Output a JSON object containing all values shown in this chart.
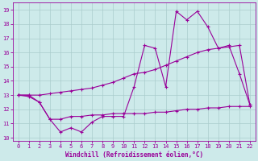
{
  "xlabel": "Windchill (Refroidissement éolien,°C)",
  "xlim": [
    -0.5,
    22.5
  ],
  "ylim": [
    9.8,
    19.5
  ],
  "xticks": [
    0,
    1,
    2,
    3,
    4,
    5,
    6,
    7,
    8,
    9,
    10,
    11,
    12,
    13,
    14,
    15,
    16,
    17,
    18,
    19,
    20,
    21,
    22
  ],
  "yticks": [
    10,
    11,
    12,
    13,
    14,
    15,
    16,
    17,
    18,
    19
  ],
  "background_color": "#cdeaea",
  "line_color": "#990099",
  "grid_color": "#aacccc",
  "line1_x": [
    0,
    1,
    2,
    3,
    4,
    5,
    6,
    7,
    8,
    9,
    10,
    11,
    12,
    13,
    14,
    15,
    16,
    17,
    18,
    19,
    20,
    21,
    22
  ],
  "line1_y": [
    13.0,
    12.9,
    12.5,
    11.3,
    10.4,
    10.7,
    10.4,
    11.1,
    11.5,
    11.5,
    11.5,
    13.6,
    16.5,
    16.3,
    13.6,
    18.9,
    18.3,
    18.9,
    17.8,
    16.3,
    16.5,
    14.5,
    12.3
  ],
  "line2_x": [
    0,
    1,
    2,
    3,
    4,
    5,
    6,
    7,
    8,
    9,
    10,
    11,
    12,
    13,
    14,
    15,
    16,
    17,
    18,
    19,
    20,
    21,
    22
  ],
  "line2_y": [
    13.0,
    13.0,
    13.0,
    13.1,
    13.2,
    13.3,
    13.4,
    13.5,
    13.7,
    13.9,
    14.2,
    14.5,
    14.6,
    14.8,
    15.1,
    15.4,
    15.7,
    16.0,
    16.2,
    16.3,
    16.4,
    16.5,
    12.3
  ],
  "line3_x": [
    0,
    1,
    2,
    3,
    4,
    5,
    6,
    7,
    8,
    9,
    10,
    11,
    12,
    13,
    14,
    15,
    16,
    17,
    18,
    19,
    20,
    21,
    22
  ],
  "line3_y": [
    13.0,
    13.0,
    12.5,
    11.3,
    11.3,
    11.5,
    11.5,
    11.6,
    11.6,
    11.7,
    11.7,
    11.7,
    11.7,
    11.8,
    11.8,
    11.9,
    12.0,
    12.0,
    12.1,
    12.1,
    12.2,
    12.2,
    12.2
  ]
}
